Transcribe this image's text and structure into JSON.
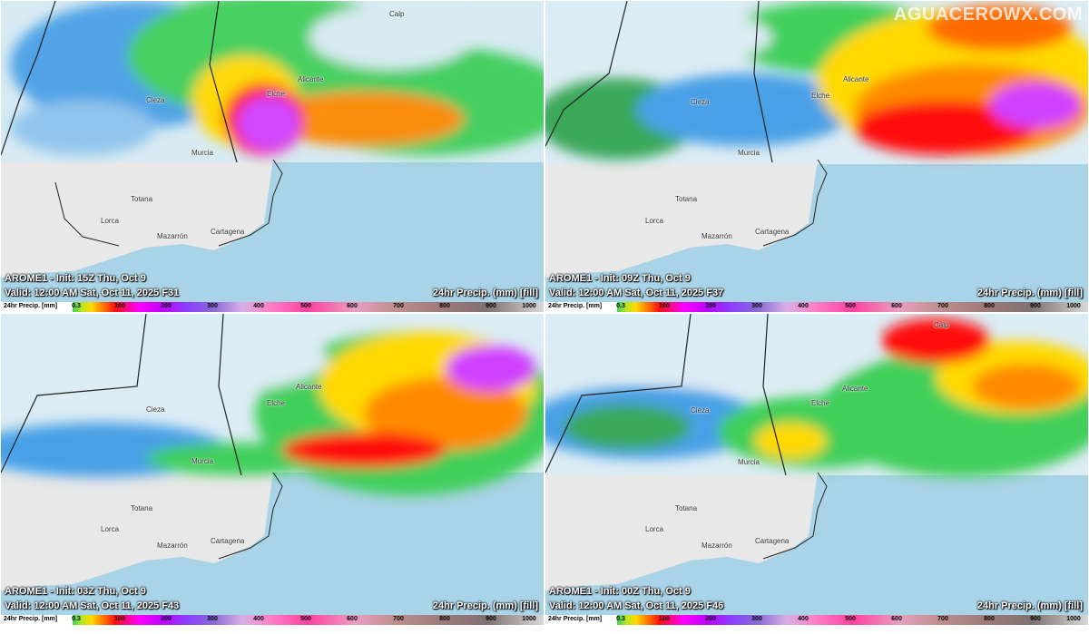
{
  "brand": "AGUACEROWX.COM",
  "panels": [
    {
      "line1": "AROME1 - Init: 15Z Thu, Oct 9",
      "line2": "Valid: 12:00 AM Sat, Oct 11, 2025 F31",
      "product": "24hr Precip. (mm) [fill]"
    },
    {
      "line1": "AROME1 - Init: 09Z Thu, Oct 9",
      "line2": "Valid: 12:00 AM Sat, Oct 11, 2025 F37",
      "product": "24hr Precip. (mm) [fill]"
    },
    {
      "line1": "AROME1 - Init: 03Z Thu, Oct 9",
      "line2": "Valid: 12:00 AM Sat, Oct 11, 2025 F43",
      "product": "24hr Precip. (mm) [fill]"
    },
    {
      "line1": "AROME1 - Init: 00Z Thu, Oct 9",
      "line2": "Valid: 12:00 AM Sat, Oct 11, 2025 F46",
      "product": "24hr Precip. (mm) [fill]"
    }
  ],
  "cities": {
    "calp": "Calp",
    "alicante": "Alicante",
    "elche": "Elche",
    "cieza": "Cieza",
    "murcia": "Murcia",
    "totana": "Totana",
    "lorca": "Lorca",
    "mazarron": "Mazarrón",
    "cartagena": "Cartagena"
  },
  "colorbar": {
    "label": "24hr Precip. [mm]",
    "ticks": [
      "0.3",
      "100",
      "200",
      "300",
      "400",
      "500",
      "600",
      "700",
      "800",
      "900",
      "1000"
    ]
  }
}
